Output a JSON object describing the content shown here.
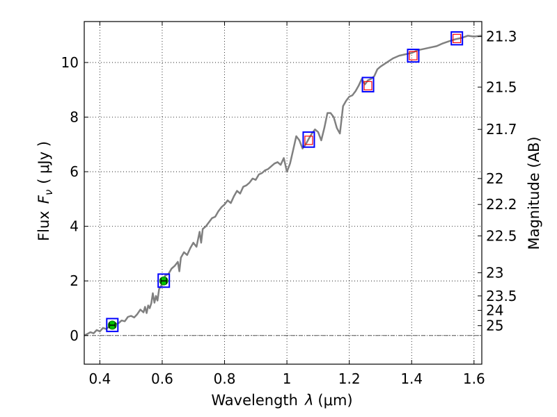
{
  "chart_data": {
    "type": "line",
    "xlabel_prefix": "Wavelength",
    "xlabel_symbol": "λ",
    "xlabel_unit": "(μm)",
    "ylabel_prefix": "Flux",
    "ylabel_symbol": "F",
    "ylabel_sub": "ν",
    "ylabel_unit": "( μJy )",
    "ylabel_right": "Magnitude (AB)",
    "xlim": [
      0.35,
      1.625
    ],
    "ylim": [
      -1.05,
      11.5
    ],
    "grid": true,
    "x_ticks": [
      0.4,
      0.6,
      0.8,
      1.0,
      1.2,
      1.4,
      1.6
    ],
    "x_tick_labels": [
      "0.4",
      "0.6",
      "0.8",
      "1",
      "1.2",
      "1.4",
      "1.6"
    ],
    "y_ticks": [
      0,
      2,
      4,
      6,
      8,
      10
    ],
    "y_tick_labels": [
      "0",
      "2",
      "4",
      "6",
      "8",
      "10"
    ],
    "right_ticks": [
      {
        "label": "21.3",
        "flux": 10.95
      },
      {
        "label": "21.5",
        "flux": 9.1
      },
      {
        "label": "21.7",
        "flux": 7.55
      },
      {
        "label": "22",
        "flux": 5.75
      },
      {
        "label": "22.2",
        "flux": 4.8
      },
      {
        "label": "22.5",
        "flux": 3.65
      },
      {
        "label": "23",
        "flux": 2.3
      },
      {
        "label": "23.5",
        "flux": 1.45
      },
      {
        "label": "24",
        "flux": 0.92
      },
      {
        "label": "25",
        "flux": 0.36
      }
    ],
    "colors": {
      "model": "#808080",
      "box": "#0000ff",
      "photometry": "#00c000",
      "model_flux": "#ff0000",
      "zero_line": "#555555"
    },
    "series": [
      {
        "values": [
          [
            0.35,
            0.0
          ],
          [
            0.37,
            0.12
          ],
          [
            0.38,
            0.08
          ],
          [
            0.39,
            0.2
          ],
          [
            0.4,
            0.15
          ],
          [
            0.41,
            0.28
          ],
          [
            0.42,
            0.24
          ],
          [
            0.43,
            0.32
          ],
          [
            0.44,
            0.3
          ],
          [
            0.45,
            0.42
          ],
          [
            0.46,
            0.45
          ],
          [
            0.47,
            0.55
          ],
          [
            0.48,
            0.52
          ],
          [
            0.49,
            0.68
          ],
          [
            0.5,
            0.72
          ],
          [
            0.51,
            0.66
          ],
          [
            0.52,
            0.78
          ],
          [
            0.53,
            0.95
          ],
          [
            0.54,
            0.85
          ],
          [
            0.545,
            1.05
          ],
          [
            0.55,
            0.82
          ],
          [
            0.555,
            1.1
          ],
          [
            0.56,
            1.0
          ],
          [
            0.565,
            1.18
          ],
          [
            0.57,
            1.55
          ],
          [
            0.575,
            1.2
          ],
          [
            0.58,
            1.45
          ],
          [
            0.585,
            1.28
          ],
          [
            0.59,
            1.7
          ],
          [
            0.6,
            1.9
          ],
          [
            0.605,
            2.0
          ],
          [
            0.61,
            2.2
          ],
          [
            0.62,
            2.25
          ],
          [
            0.63,
            2.45
          ],
          [
            0.64,
            2.55
          ],
          [
            0.65,
            2.7
          ],
          [
            0.655,
            2.35
          ],
          [
            0.66,
            2.85
          ],
          [
            0.67,
            3.05
          ],
          [
            0.68,
            2.95
          ],
          [
            0.69,
            3.2
          ],
          [
            0.7,
            3.4
          ],
          [
            0.71,
            3.25
          ],
          [
            0.72,
            3.8
          ],
          [
            0.725,
            3.4
          ],
          [
            0.73,
            3.9
          ],
          [
            0.74,
            4.0
          ],
          [
            0.75,
            4.15
          ],
          [
            0.76,
            4.3
          ],
          [
            0.77,
            4.35
          ],
          [
            0.78,
            4.55
          ],
          [
            0.79,
            4.7
          ],
          [
            0.8,
            4.8
          ],
          [
            0.81,
            4.95
          ],
          [
            0.82,
            4.85
          ],
          [
            0.83,
            5.1
          ],
          [
            0.84,
            5.3
          ],
          [
            0.85,
            5.2
          ],
          [
            0.86,
            5.45
          ],
          [
            0.87,
            5.5
          ],
          [
            0.88,
            5.6
          ],
          [
            0.89,
            5.75
          ],
          [
            0.9,
            5.7
          ],
          [
            0.91,
            5.9
          ],
          [
            0.92,
            5.95
          ],
          [
            0.93,
            6.05
          ],
          [
            0.94,
            6.1
          ],
          [
            0.95,
            6.2
          ],
          [
            0.96,
            6.3
          ],
          [
            0.97,
            6.35
          ],
          [
            0.98,
            6.25
          ],
          [
            0.99,
            6.5
          ],
          [
            1.0,
            6.0
          ],
          [
            1.01,
            6.3
          ],
          [
            1.02,
            6.8
          ],
          [
            1.03,
            7.3
          ],
          [
            1.04,
            7.15
          ],
          [
            1.05,
            6.85
          ],
          [
            1.06,
            7.0
          ],
          [
            1.07,
            7.2
          ],
          [
            1.08,
            7.4
          ],
          [
            1.09,
            7.55
          ],
          [
            1.1,
            7.45
          ],
          [
            1.11,
            7.15
          ],
          [
            1.12,
            7.6
          ],
          [
            1.13,
            8.15
          ],
          [
            1.14,
            8.15
          ],
          [
            1.15,
            8.0
          ],
          [
            1.16,
            7.6
          ],
          [
            1.17,
            7.4
          ],
          [
            1.18,
            8.4
          ],
          [
            1.19,
            8.6
          ],
          [
            1.2,
            8.75
          ],
          [
            1.21,
            8.8
          ],
          [
            1.22,
            8.95
          ],
          [
            1.23,
            9.15
          ],
          [
            1.24,
            9.4
          ],
          [
            1.25,
            9.2
          ],
          [
            1.26,
            9.35
          ],
          [
            1.27,
            9.4
          ],
          [
            1.28,
            9.5
          ],
          [
            1.29,
            9.75
          ],
          [
            1.3,
            9.85
          ],
          [
            1.32,
            10.0
          ],
          [
            1.34,
            10.15
          ],
          [
            1.36,
            10.25
          ],
          [
            1.38,
            10.3
          ],
          [
            1.4,
            10.35
          ],
          [
            1.42,
            10.45
          ],
          [
            1.44,
            10.5
          ],
          [
            1.46,
            10.55
          ],
          [
            1.48,
            10.6
          ],
          [
            1.5,
            10.7
          ],
          [
            1.52,
            10.78
          ],
          [
            1.54,
            10.85
          ],
          [
            1.56,
            10.9
          ],
          [
            1.58,
            10.98
          ],
          [
            1.6,
            10.95
          ],
          [
            1.625,
            10.98
          ]
        ]
      }
    ],
    "photometry": [
      {
        "x": 0.44,
        "y": 0.38,
        "yerr": 0.05,
        "box_low": 0.15,
        "box_high": 0.62
      },
      {
        "x": 0.605,
        "y": 2.0,
        "yerr": 0.06,
        "box_low": 1.77,
        "box_high": 2.25
      }
    ],
    "model_points": [
      {
        "x": 1.07,
        "y": 7.15,
        "box_low": 6.9,
        "box_high": 7.45
      },
      {
        "x": 1.26,
        "y": 9.15,
        "box_low": 8.93,
        "box_high": 9.45
      },
      {
        "x": 1.405,
        "y": 10.25,
        "box_low": 10.02,
        "box_high": 10.48
      },
      {
        "x": 1.545,
        "y": 10.88,
        "box_low": 10.65,
        "box_high": 11.12
      }
    ]
  }
}
